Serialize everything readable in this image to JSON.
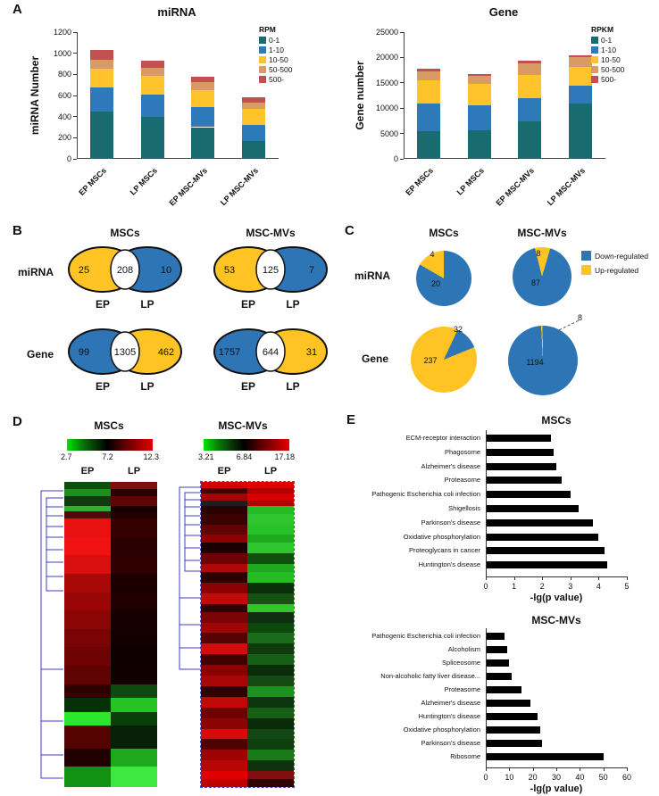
{
  "panels": {
    "a_label": "A",
    "b_label": "B",
    "c_label": "C",
    "d_label": "D",
    "e_label": "E"
  },
  "colors": {
    "rpm_bins": [
      "#1A6B70",
      "#2E79B9",
      "#FFC32B",
      "#D99B66",
      "#C1504E"
    ],
    "down_regulated": "#2E75B6",
    "up_regulated": "#FFC423",
    "pathway_bar": "#000000",
    "dendrogram": "#3C3CC0"
  },
  "chart_data": [
    {
      "id": "mirna_expression",
      "type": "bar",
      "stacked": true,
      "title": "miRNA",
      "ylabel": "miRNA Number",
      "ylim": [
        0,
        1200
      ],
      "yticks": [
        0,
        200,
        400,
        600,
        800,
        1000,
        1200
      ],
      "categories": [
        "EP MSCs",
        "LP MSCs",
        "EP MSC-MVs",
        "LP MSC-MVs"
      ],
      "legend_title": "RPM",
      "legend_position": "top-right",
      "series": [
        {
          "name": "0-1",
          "color": "#1A6B70",
          "values": [
            450,
            400,
            300,
            170
          ]
        },
        {
          "name": "1-10",
          "color": "#2E79B9",
          "values": [
            230,
            210,
            190,
            150
          ]
        },
        {
          "name": "10-50",
          "color": "#FFC32B",
          "values": [
            170,
            180,
            160,
            150
          ]
        },
        {
          "name": "50-500",
          "color": "#D99B66",
          "values": [
            90,
            75,
            75,
            60
          ]
        },
        {
          "name": "500-",
          "color": "#C1504E",
          "values": [
            90,
            65,
            55,
            55
          ]
        }
      ]
    },
    {
      "id": "gene_expression",
      "type": "bar",
      "stacked": true,
      "title": "Gene",
      "ylabel": "Gene number",
      "ylim": [
        0,
        25000
      ],
      "yticks": [
        0,
        5000,
        10000,
        15000,
        20000,
        25000
      ],
      "categories": [
        "EP MSCs",
        "LP MSCs",
        "EP MSC-MVs",
        "LP MSC-MVs"
      ],
      "legend_title": "RPKM",
      "legend_position": "top-right",
      "series": [
        {
          "name": "0-1",
          "color": "#1A6B70",
          "values": [
            5500,
            5600,
            7400,
            11000
          ]
        },
        {
          "name": "1-10",
          "color": "#2E79B9",
          "values": [
            5500,
            5000,
            4600,
            3500
          ]
        },
        {
          "name": "10-50",
          "color": "#FFC32B",
          "values": [
            4500,
            4200,
            4600,
            3700
          ]
        },
        {
          "name": "50-500",
          "color": "#D99B66",
          "values": [
            1700,
            1600,
            2200,
            1800
          ]
        },
        {
          "name": "500-",
          "color": "#C1504E",
          "values": [
            500,
            400,
            500,
            500
          ]
        }
      ]
    },
    {
      "id": "venn_overlap",
      "type": "venn",
      "column_titles": [
        "MSCs",
        "MSC-MVs"
      ],
      "rows": [
        {
          "label": "miRNA",
          "diagrams": [
            {
              "left": "25",
              "overlap": "208",
              "right": "10",
              "left_tag": "EP",
              "right_tag": "LP",
              "left_color": "#FFC423",
              "right_color": "#2E75B6"
            },
            {
              "left": "53",
              "overlap": "125",
              "right": "7",
              "left_tag": "EP",
              "right_tag": "LP",
              "left_color": "#FFC423",
              "right_color": "#2E75B6"
            }
          ]
        },
        {
          "label": "Gene",
          "diagrams": [
            {
              "left": "99",
              "overlap": "1305",
              "right": "462",
              "left_tag": "EP",
              "right_tag": "LP",
              "left_color": "#2E75B6",
              "right_color": "#FFC423"
            },
            {
              "left": "1757",
              "overlap": "644",
              "right": "31",
              "left_tag": "EP",
              "right_tag": "LP",
              "left_color": "#2E75B6",
              "right_color": "#FFC423"
            }
          ]
        }
      ]
    },
    {
      "id": "regulation_pies",
      "type": "pie",
      "column_titles": [
        "MSCs",
        "MSC-MVs"
      ],
      "legend": [
        {
          "label": "Down-regulated",
          "color": "#2E75B6"
        },
        {
          "label": "Up-regulated",
          "color": "#FFC423"
        }
      ],
      "rows": [
        {
          "label": "miRNA",
          "pies": [
            {
              "down": 20,
              "up": 4
            },
            {
              "down": 87,
              "up": 8
            }
          ]
        },
        {
          "label": "Gene",
          "pies": [
            {
              "down": 32,
              "up": 237
            },
            {
              "down": 1194,
              "up": 8,
              "callout_label": "8"
            }
          ]
        }
      ]
    },
    {
      "id": "heatmap_mscs",
      "type": "heatmap",
      "title": "MSCs",
      "scale_labels": [
        "2.7",
        "7.2",
        "12.3"
      ],
      "columns": [
        "EP",
        "LP"
      ],
      "bands": [
        [
          8,
          "#0C4F0C",
          "#7C0F0F"
        ],
        [
          8,
          "#1E8F1E",
          "#2B0000"
        ],
        [
          10,
          "#123912",
          "#5E0505"
        ],
        [
          6,
          "#2FAE2F",
          "#180000"
        ],
        [
          8,
          "#4F0A0A",
          "#240000"
        ],
        [
          20,
          "#E81010",
          "#350000"
        ],
        [
          20,
          "#F01212",
          "#2A0000"
        ],
        [
          20,
          "#D90E0E",
          "#300000"
        ],
        [
          20,
          "#A80808",
          "#1C0000"
        ],
        [
          20,
          "#9A0606",
          "#200000"
        ],
        [
          20,
          "#8B0505",
          "#160000"
        ],
        [
          20,
          "#7A0404",
          "#120000"
        ],
        [
          20,
          "#6F0303",
          "#0E0000"
        ],
        [
          20,
          "#600202",
          "#100000"
        ],
        [
          15,
          "#2E0000",
          "#0E4A0E"
        ],
        [
          15,
          "#083008",
          "#27C227"
        ],
        [
          15,
          "#2EE52E",
          "#0A3F0A"
        ],
        [
          25,
          "#550202",
          "#061F06"
        ],
        [
          20,
          "#200000",
          "#1DA81D"
        ],
        [
          22,
          "#139113",
          "#3FE83F"
        ]
      ]
    },
    {
      "id": "heatmap_mscmvs",
      "type": "heatmap",
      "title": "MSC-MVs",
      "scale_labels": [
        "3.21",
        "6.84",
        "17.18"
      ],
      "columns": [
        "EP",
        "LP"
      ],
      "bands": [
        [
          5,
          "#D40000",
          "#E00000"
        ],
        [
          4,
          "#470000",
          "#B00000"
        ],
        [
          5,
          "#A00404",
          "#D80000"
        ],
        [
          4,
          "#1E1E1E",
          "#B00000"
        ],
        [
          6,
          "#2A0000",
          "#26BA26"
        ],
        [
          8,
          "#3B0202",
          "#2FC52F"
        ],
        [
          8,
          "#5E0404",
          "#27C227"
        ],
        [
          6,
          "#8B0000",
          "#1DA81D"
        ],
        [
          8,
          "#1A0000",
          "#2FC52F"
        ],
        [
          8,
          "#6E0303",
          "#0F4F0F"
        ],
        [
          6,
          "#B00808",
          "#1DA81D"
        ],
        [
          8,
          "#2E0000",
          "#26BA26"
        ],
        [
          8,
          "#8B0000",
          "#0A2F0A"
        ],
        [
          8,
          "#C00A0A",
          "#145214"
        ],
        [
          6,
          "#2F0000",
          "#2FC52F"
        ],
        [
          8,
          "#7A0404",
          "#102E10"
        ],
        [
          8,
          "#9C0606",
          "#0C470C"
        ],
        [
          8,
          "#560202",
          "#1A6B1A"
        ],
        [
          8,
          "#D00C0C",
          "#0E3A0E"
        ],
        [
          8,
          "#420000",
          "#156015"
        ],
        [
          8,
          "#8B0000",
          "#0B2B0B"
        ],
        [
          8,
          "#A80606",
          "#124A12"
        ],
        [
          8,
          "#300000",
          "#1F8F1F"
        ],
        [
          8,
          "#C00808",
          "#0D350D"
        ],
        [
          8,
          "#6E0202",
          "#166016"
        ],
        [
          8,
          "#8B0404",
          "#0A2A0A"
        ],
        [
          8,
          "#D80A0A",
          "#134713"
        ],
        [
          8,
          "#4F0101",
          "#0E3F0E"
        ],
        [
          8,
          "#9C0404",
          "#1A7A1A"
        ],
        [
          8,
          "#B80606",
          "#0C330C"
        ],
        [
          6,
          "#E00000",
          "#801010"
        ],
        [
          6,
          "#C00000",
          "#300000"
        ]
      ]
    },
    {
      "id": "kegg_mscs",
      "type": "bar",
      "orientation": "horizontal",
      "title": "MSCs",
      "xlabel": "-lg(p value)",
      "xlim": [
        0,
        5
      ],
      "xticks": [
        0,
        1,
        2,
        3,
        4,
        5
      ],
      "bar_color": "#000000",
      "categories": [
        "ECM-receptor interaction",
        "Phagosome",
        "Alzheimer's disease",
        "Proteasome",
        "Pathogenic Escherichia coli infection",
        "Shigellosis",
        "Parkinson's disease",
        "Oxidative phosphorylation",
        "Proteoglycans in cancer",
        "Huntington's disease"
      ],
      "values": [
        2.3,
        2.4,
        2.5,
        2.7,
        3.0,
        3.3,
        3.8,
        4.0,
        4.2,
        4.3
      ]
    },
    {
      "id": "kegg_mscmvs",
      "type": "bar",
      "orientation": "horizontal",
      "title": "MSC-MVs",
      "xlabel": "-lg(p value)",
      "xlim": [
        0,
        60
      ],
      "xticks": [
        0,
        10,
        20,
        30,
        40,
        50,
        60
      ],
      "bar_color": "#000000",
      "categories": [
        "Pathogenic Escherichia coli infection",
        "Alcoholism",
        "Spliceosome",
        "Non-alcoholic fatty liver disease...",
        "Proteasome",
        "Alzheimer's disease",
        "Huntington's disease",
        "Oxidative phosphorylation",
        "Parkinson's disease",
        "Ribosome"
      ],
      "values": [
        8,
        9,
        10,
        11,
        15,
        19,
        22,
        23,
        24,
        50
      ]
    }
  ]
}
